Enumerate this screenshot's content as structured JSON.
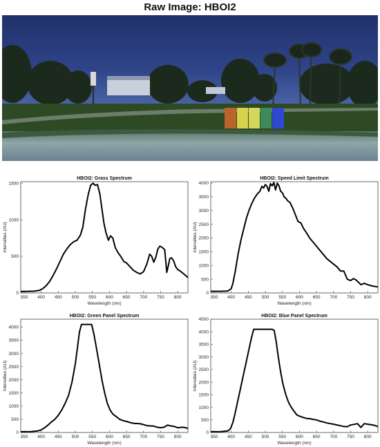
{
  "header": {
    "title": "Raw Image: HBOI2"
  },
  "raw_image": {
    "description_colors": {
      "sky": "#283a78",
      "grass": "#2d4a25",
      "panel_orange": "#b8642a",
      "panel_yellow": "#d8d24a",
      "panel_green": "#3f8a5c",
      "panel_blue": "#2f48d0"
    }
  },
  "chart_data": [
    {
      "type": "line",
      "title": "HBOI2: Grass Spectrum",
      "xlabel": "Wavelength (nm)",
      "ylabel": "Intensities (AU)",
      "xlim": [
        340,
        830
      ],
      "ylim": [
        0,
        1520
      ],
      "xticks": [
        350,
        400,
        450,
        500,
        550,
        600,
        650,
        700,
        750,
        800
      ],
      "yticks": [
        0,
        500,
        1000,
        1500
      ],
      "series": [
        {
          "x": [
            340,
            360,
            380,
            395,
            405,
            415,
            425,
            435,
            445,
            455,
            465,
            475,
            485,
            495,
            505,
            515,
            522,
            530,
            538,
            545,
            552,
            558,
            565,
            572,
            578,
            584,
            590,
            597,
            603,
            610,
            617,
            625,
            633,
            642,
            650,
            660,
            670,
            680,
            690,
            700,
            710,
            718,
            724,
            730,
            736,
            742,
            748,
            755,
            762,
            768,
            773,
            777,
            782,
            788,
            794,
            800,
            807,
            815,
            823,
            830
          ],
          "y": [
            20,
            22,
            25,
            35,
            60,
            100,
            160,
            240,
            330,
            430,
            530,
            600,
            660,
            700,
            720,
            790,
            900,
            1150,
            1350,
            1470,
            1500,
            1470,
            1480,
            1350,
            1150,
            950,
            820,
            720,
            780,
            750,
            620,
            550,
            500,
            430,
            410,
            360,
            310,
            280,
            260,
            290,
            400,
            530,
            500,
            420,
            490,
            600,
            640,
            620,
            590,
            280,
            380,
            470,
            480,
            440,
            360,
            320,
            300,
            270,
            240,
            210
          ]
        }
      ]
    },
    {
      "type": "line",
      "title": "HBOI2: Speed Limit Spectrum",
      "xlabel": "Wavelength (nm)",
      "ylabel": "Intensities (AU)",
      "xlim": [
        340,
        830
      ],
      "ylim": [
        0,
        4050
      ],
      "xticks": [
        350,
        400,
        450,
        500,
        550,
        600,
        650,
        700,
        750,
        800
      ],
      "yticks": [
        0,
        500,
        1000,
        1500,
        2000,
        2500,
        3000,
        3500,
        4000
      ],
      "series": [
        {
          "x": [
            340,
            370,
            390,
            400,
            405,
            412,
            420,
            428,
            436,
            444,
            452,
            460,
            468,
            476,
            484,
            490,
            495,
            500,
            505,
            510,
            515,
            520,
            525,
            530,
            535,
            540,
            545,
            550,
            555,
            560,
            566,
            572,
            580,
            588,
            596,
            604,
            612,
            620,
            630,
            640,
            650,
            660,
            670,
            680,
            690,
            700,
            710,
            720,
            730,
            740,
            750,
            758,
            765,
            772,
            780,
            790,
            800,
            815,
            830
          ],
          "y": [
            60,
            60,
            70,
            150,
            350,
            800,
            1400,
            1900,
            2300,
            2700,
            3000,
            3250,
            3450,
            3600,
            3700,
            3880,
            3820,
            3950,
            3880,
            3700,
            3980,
            3900,
            4020,
            3750,
            4000,
            3900,
            3700,
            3650,
            3500,
            3450,
            3350,
            3300,
            3100,
            2850,
            2600,
            2550,
            2350,
            2200,
            2000,
            1850,
            1700,
            1550,
            1400,
            1250,
            1150,
            1050,
            950,
            800,
            800,
            500,
            450,
            520,
            480,
            400,
            300,
            350,
            300,
            250,
            220
          ]
        }
      ]
    },
    {
      "type": "line",
      "title": "HBOI2: Green Panel Spectrum",
      "xlabel": "Wavelength (nm)",
      "ylabel": "Intensities (AU)",
      "xlim": [
        340,
        830
      ],
      "ylim": [
        0,
        4300
      ],
      "xticks": [
        350,
        400,
        450,
        500,
        550,
        600,
        650,
        700,
        750,
        800
      ],
      "yticks": [
        0,
        500,
        1000,
        1500,
        2000,
        2500,
        3000,
        3500,
        4000
      ],
      "series": [
        {
          "x": [
            340,
            370,
            390,
            400,
            410,
            420,
            430,
            440,
            450,
            460,
            470,
            480,
            490,
            500,
            506,
            512,
            518,
            525,
            532,
            540,
            548,
            555,
            562,
            570,
            578,
            586,
            594,
            602,
            610,
            620,
            630,
            640,
            650,
            660,
            670,
            680,
            690,
            700,
            710,
            720,
            730,
            740,
            750,
            760,
            770,
            780,
            790,
            800,
            815,
            830
          ],
          "y": [
            30,
            35,
            60,
            100,
            180,
            280,
            400,
            500,
            650,
            850,
            1100,
            1400,
            1900,
            2600,
            3200,
            3800,
            4100,
            4100,
            4100,
            4100,
            4100,
            3700,
            3200,
            2600,
            2000,
            1500,
            1100,
            850,
            700,
            600,
            500,
            450,
            420,
            380,
            350,
            340,
            330,
            300,
            260,
            250,
            240,
            200,
            180,
            200,
            280,
            250,
            230,
            180,
            200,
            160
          ]
        }
      ]
    },
    {
      "type": "line",
      "title": "HBOI2: Blue Panel Spectrum",
      "xlabel": "Wavelength (nm)",
      "ylabel": "Intensities (AU)",
      "xlim": [
        340,
        830
      ],
      "ylim": [
        0,
        4500
      ],
      "xticks": [
        350,
        400,
        450,
        500,
        550,
        600,
        650,
        700,
        750,
        800
      ],
      "yticks": [
        0,
        500,
        1000,
        1500,
        2000,
        2500,
        3000,
        3500,
        4000,
        4500
      ],
      "series": [
        {
          "x": [
            340,
            370,
            390,
            398,
            405,
            412,
            420,
            428,
            436,
            444,
            452,
            460,
            466,
            472,
            480,
            490,
            500,
            510,
            520,
            526,
            532,
            538,
            545,
            552,
            560,
            568,
            576,
            584,
            592,
            600,
            610,
            620,
            630,
            640,
            650,
            660,
            670,
            680,
            690,
            700,
            710,
            720,
            730,
            740,
            750,
            760,
            770,
            780,
            790,
            800,
            815,
            830
          ],
          "y": [
            30,
            35,
            60,
            150,
            400,
            800,
            1300,
            1800,
            2300,
            2800,
            3300,
            3800,
            4100,
            4100,
            4100,
            4100,
            4100,
            4100,
            4100,
            4050,
            3600,
            3000,
            2400,
            1900,
            1500,
            1200,
            1000,
            850,
            700,
            650,
            600,
            560,
            550,
            520,
            500,
            450,
            420,
            380,
            350,
            330,
            300,
            270,
            240,
            230,
            300,
            320,
            350,
            200,
            350,
            330,
            300,
            240
          ]
        }
      ]
    }
  ]
}
